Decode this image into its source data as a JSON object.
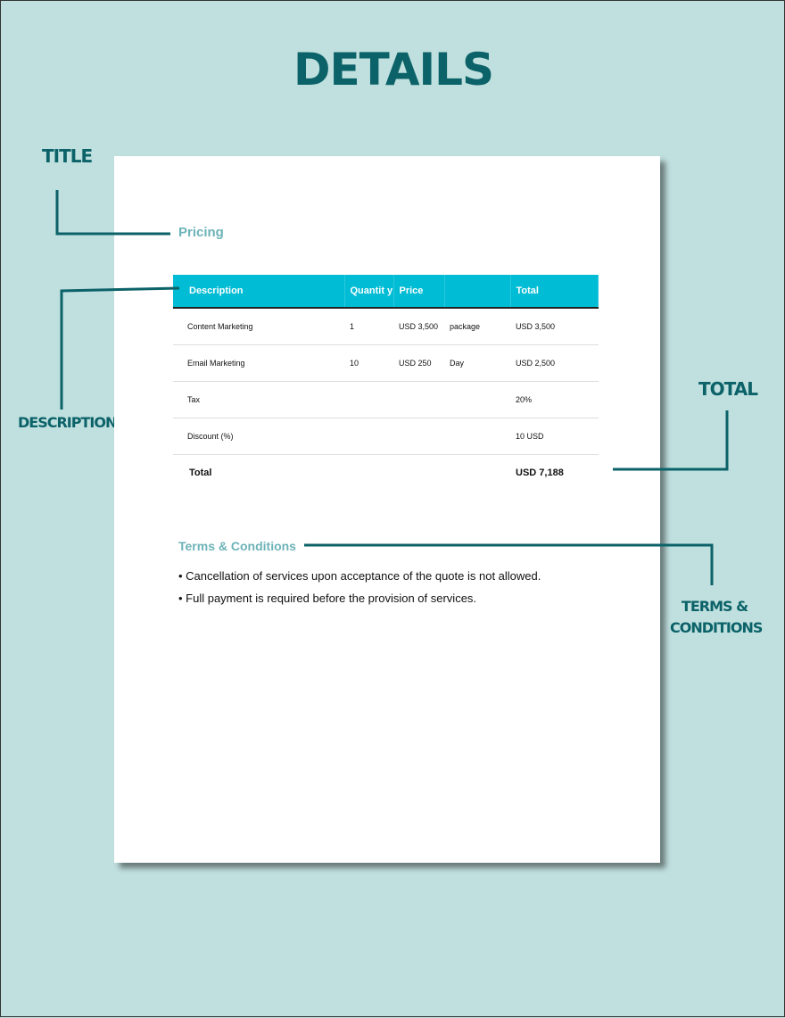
{
  "heading": "DETAILS",
  "callouts": {
    "title": "TITLE",
    "description": "DESCRIPTION",
    "total": "TOTAL",
    "terms_line1": "TERMS &",
    "terms_line2": "CONDITIONS"
  },
  "document": {
    "pricing_title": "Pricing",
    "table": {
      "headers": [
        "Description",
        "Quantit y",
        "Price",
        "",
        "Total"
      ],
      "rows": [
        [
          "Content Marketing",
          "1",
          "USD 3,500",
          "package",
          "USD 3,500"
        ],
        [
          "Email Marketing",
          "10",
          "USD 250",
          "Day",
          "USD 2,500"
        ],
        [
          "Tax",
          "",
          "",
          "",
          "20%"
        ],
        [
          "Discount (%)",
          "",
          "",
          "",
          "10  USD"
        ]
      ],
      "total_label": "Total",
      "total_value": "USD 7,188"
    },
    "terms_title": "Terms & Conditions",
    "terms": [
      "• Cancellation of services upon acceptance of the quote is not allowed.",
      "• Full payment is required before the provision of services."
    ]
  },
  "colors": {
    "background": "#c0e0df",
    "accent": "#0b6268",
    "table_header": "#00bcd4",
    "subtitle": "#6db3b8"
  }
}
